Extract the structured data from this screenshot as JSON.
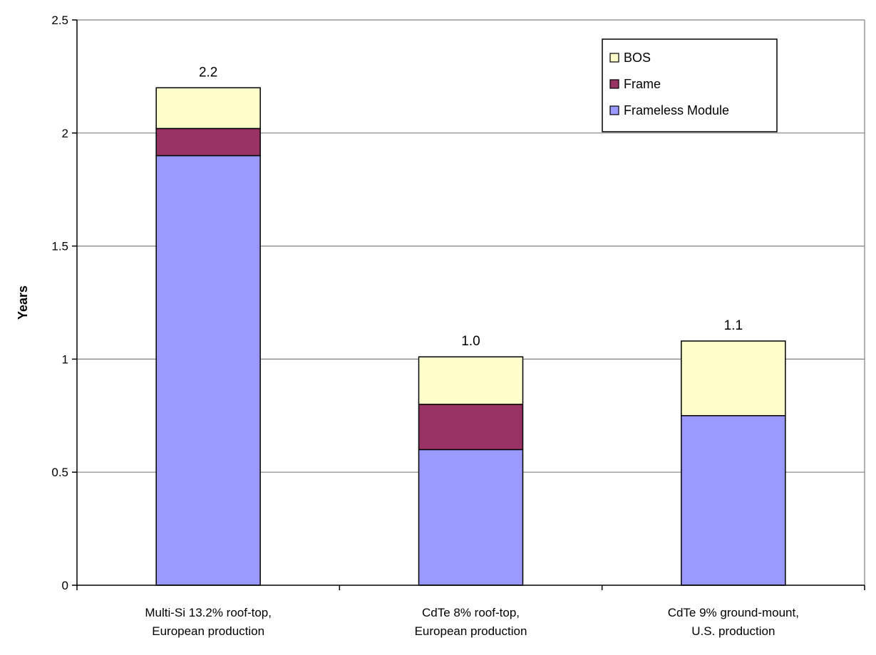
{
  "chart_data": {
    "type": "bar",
    "stacked": true,
    "categories": [
      [
        "Multi-Si 13.2% roof-top,",
        "European production"
      ],
      [
        "CdTe 8% roof-top,",
        "European production"
      ],
      [
        "CdTe 9% ground-mount,",
        "U.S. production"
      ]
    ],
    "series": [
      {
        "name": "Frameless Module",
        "color": "#9999ff",
        "values": [
          1.9,
          0.6,
          0.75
        ]
      },
      {
        "name": "Frame",
        "color": "#993366",
        "values": [
          0.12,
          0.2,
          0.0
        ]
      },
      {
        "name": "BOS",
        "color": "#ffffcc",
        "values": [
          0.18,
          0.21,
          0.33
        ]
      }
    ],
    "totals": [
      "2.2",
      "1.0",
      "1.1"
    ],
    "legend_order": [
      "BOS",
      "Frame",
      "Frameless Module"
    ],
    "legend_position": "top-right",
    "ylabel": "Years",
    "xlabel": "",
    "title": "",
    "ylim": [
      0,
      2.5
    ],
    "yticks": [
      0,
      0.5,
      1,
      1.5,
      2,
      2.5
    ],
    "ytick_labels": [
      "0",
      "0.5",
      "1",
      "1.5",
      "2",
      "2.5"
    ],
    "grid": true,
    "gridline_color": "#808080"
  }
}
